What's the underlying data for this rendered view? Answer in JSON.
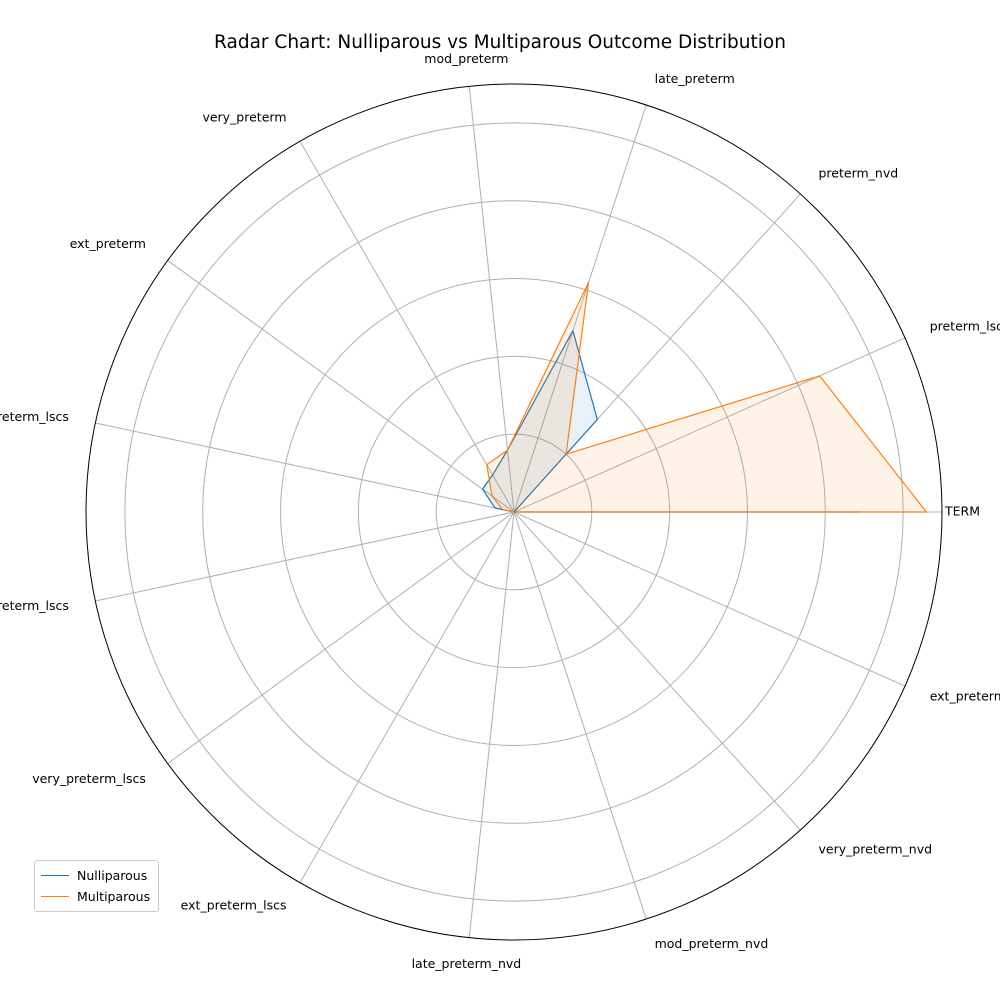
{
  "chart_data": {
    "type": "radar",
    "title": "Radar Chart: Nulliparous vs Multiparous Outcome Distribution",
    "categories": [
      "TERM",
      "preterm_lscs",
      "preterm_nvd",
      "late_preterm",
      "mod_preterm",
      "very_preterm",
      "ext_preterm",
      "late_preterm_lscs",
      "mod_preterm_lscs",
      "very_preterm_lscs",
      "ext_preterm_lscs",
      "late_preterm_nvd",
      "mod_preterm_nvd",
      "very_preterm_nvd",
      "ext_preterm_nvd"
    ],
    "rmax": 5.5,
    "grid_levels": [
      1,
      2,
      3,
      4,
      5
    ],
    "grid": true,
    "legend_position": "lower-left",
    "series": [
      {
        "name": "Nulliparous",
        "color": "#1f77b4",
        "values": [
          4.45,
          0.0,
          1.6,
          2.45,
          0.8,
          0.55,
          0.5,
          0.25,
          0.0,
          0.0,
          0.0,
          0.0,
          0.0,
          0.0,
          0.0
        ]
      },
      {
        "name": "Multiparous",
        "color": "#ff7f0e",
        "values": [
          5.3,
          4.3,
          1.0,
          3.1,
          0.8,
          0.7,
          0.35,
          0.15,
          0.0,
          0.0,
          0.0,
          0.0,
          0.0,
          0.0,
          0.0
        ]
      }
    ]
  }
}
